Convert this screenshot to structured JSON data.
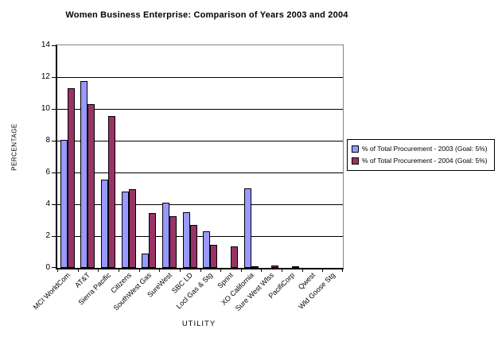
{
  "title": "Women Business Enterprise: Comparison of Years 2003 and 2004",
  "chart_data": {
    "type": "bar",
    "title": "Women Business Enterprise: Comparison of Years 2003 and 2004",
    "xlabel": "UTILITY",
    "ylabel": "PERCENTAGE",
    "ylim": [
      0,
      14
    ],
    "yticks": [
      0,
      2,
      4,
      6,
      8,
      10,
      12,
      14
    ],
    "grid": true,
    "legend_position": "right",
    "categories": [
      "MCI WorldCom",
      "AT&T",
      "Sierra Pacific",
      "Citizens",
      "SouthWest Gas",
      "SureWest",
      "SBC LD",
      "Locl Gas & Stg",
      "Sprint",
      "XO California",
      "Sure West Wlss",
      "PacifiCorp",
      "Qwest",
      "Wld Goose Stg"
    ],
    "series": [
      {
        "name": "% of Total Procurement - 2003 (Goal: 5%)",
        "color": "#9999FF",
        "values": [
          8.05,
          11.75,
          5.55,
          4.8,
          0.9,
          4.1,
          3.5,
          2.3,
          0,
          5.0,
          0,
          0,
          0,
          0
        ]
      },
      {
        "name": "% of Total Procurement - 2004 (Goal: 5%)",
        "color": "#993366",
        "values": [
          11.3,
          10.3,
          9.55,
          4.95,
          3.45,
          3.25,
          2.7,
          1.45,
          1.35,
          0.1,
          0.15,
          0.1,
          0,
          0
        ]
      }
    ]
  },
  "colors": {
    "background": "#FFFFFF",
    "gridline": "#000000",
    "plot_border": "#848484",
    "series_2003": "#9999FF",
    "series_2004": "#993366"
  }
}
